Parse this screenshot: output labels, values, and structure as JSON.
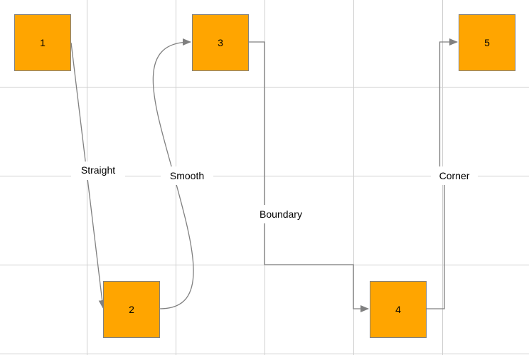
{
  "nodes": [
    {
      "id": "1",
      "label": "1"
    },
    {
      "id": "2",
      "label": "2"
    },
    {
      "id": "3",
      "label": "3"
    },
    {
      "id": "4",
      "label": "4"
    },
    {
      "id": "5",
      "label": "5"
    }
  ],
  "links": [
    {
      "source": "1",
      "target": "2",
      "label": "Straight",
      "type": "straight"
    },
    {
      "source": "2",
      "target": "3",
      "label": "Smooth",
      "type": "smooth"
    },
    {
      "source": "3",
      "target": "4",
      "label": "Boundary",
      "type": "orthogonal"
    },
    {
      "source": "4",
      "target": "5",
      "label": "Corner",
      "type": "orthogonal"
    }
  ],
  "colors": {
    "node_fill": "#ffa500",
    "stroke": "#808080",
    "grid": "#d0d0d0"
  }
}
